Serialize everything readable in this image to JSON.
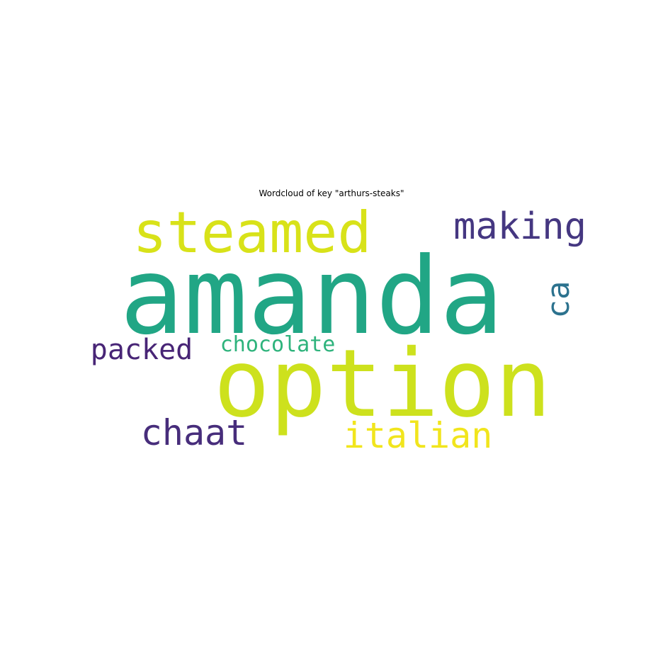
{
  "chart_data": {
    "type": "wordcloud",
    "title": "Wordcloud of key \"arthurs-steaks\"",
    "words": [
      {
        "text": "amanda",
        "color": "#21a685",
        "orientation": "horizontal"
      },
      {
        "text": "option",
        "color": "#cde11d",
        "orientation": "horizontal"
      },
      {
        "text": "steamed",
        "color": "#d8e219",
        "orientation": "horizontal"
      },
      {
        "text": "making",
        "color": "#453781",
        "orientation": "horizontal"
      },
      {
        "text": "ca",
        "color": "#2c728e",
        "orientation": "vertical"
      },
      {
        "text": "packed",
        "color": "#482576",
        "orientation": "horizontal"
      },
      {
        "text": "chocolate",
        "color": "#2eb37c",
        "orientation": "horizontal"
      },
      {
        "text": "chaat",
        "color": "#472d7b",
        "orientation": "horizontal"
      },
      {
        "text": "italian",
        "color": "#f1e51d",
        "orientation": "horizontal"
      }
    ]
  }
}
